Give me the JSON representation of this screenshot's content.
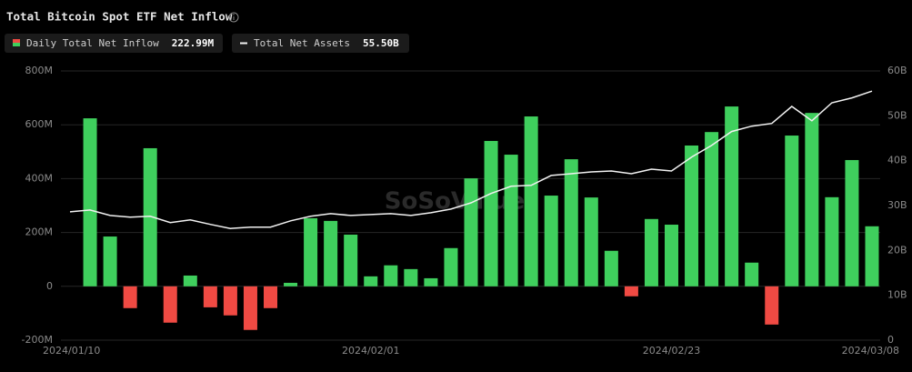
{
  "chart_data": {
    "type": "bar",
    "title": "Total Bitcoin Spot ETF Net Inflow",
    "watermark": "SoSoValue",
    "categories": [
      "2024/01/10",
      null,
      null,
      null,
      null,
      null,
      null,
      null,
      null,
      null,
      null,
      null,
      null,
      null,
      null,
      "2024/02/01",
      null,
      null,
      null,
      null,
      null,
      null,
      null,
      null,
      null,
      null,
      null,
      null,
      null,
      null,
      "2024/02/23",
      null,
      null,
      null,
      null,
      null,
      null,
      null,
      null,
      null,
      "2024/03/08"
    ],
    "series": [
      {
        "name": "Daily Total Net Inflow",
        "legend_value": "222.99M",
        "type": "bar",
        "axis": "y",
        "color": "#3fcf5d",
        "negative_color": "#f04a43",
        "values": [
          null,
          624,
          185,
          -81,
          513,
          -135,
          40,
          -78,
          -108,
          -162,
          -81,
          13,
          253,
          243,
          192,
          37,
          78,
          64,
          30,
          142,
          401,
          540,
          489,
          631,
          337,
          472,
          330,
          132,
          -37,
          250,
          229,
          523,
          573,
          668,
          88,
          -142,
          560,
          644,
          331,
          469,
          222.99
        ]
      },
      {
        "name": "Total Net Assets",
        "legend_value": "55.50B",
        "type": "line",
        "axis": "y2",
        "color": "#f2f2f2",
        "values": [
          28.6,
          29.0,
          27.8,
          27.4,
          27.6,
          26.2,
          26.8,
          25.8,
          24.9,
          25.2,
          25.2,
          26.6,
          27.6,
          28.2,
          27.8,
          28.0,
          28.2,
          27.8,
          28.4,
          29.2,
          30.6,
          32.7,
          34.3,
          34.5,
          36.7,
          37.1,
          37.5,
          37.7,
          37.1,
          38.1,
          37.7,
          40.8,
          43.4,
          46.5,
          47.7,
          48.3,
          52.1,
          48.9,
          52.9,
          54.0,
          55.5
        ]
      }
    ],
    "ylim": [
      -200,
      800
    ],
    "yticks": [
      {
        "value": -200,
        "label": "-200M"
      },
      0,
      {
        "value": 200,
        "label": "200M"
      },
      {
        "value": 400,
        "label": "400M"
      },
      {
        "value": 600,
        "label": "600M"
      },
      {
        "value": 800,
        "label": "800M"
      }
    ],
    "y2lim": [
      0,
      60
    ],
    "y2ticks": [
      0,
      {
        "value": 10,
        "label": "10B"
      },
      {
        "value": 20,
        "label": "20B"
      },
      {
        "value": 30,
        "label": "30B"
      },
      {
        "value": 40,
        "label": "40B"
      },
      {
        "value": 50,
        "label": "50B"
      },
      {
        "value": 60,
        "label": "60B"
      }
    ],
    "grid": true
  }
}
